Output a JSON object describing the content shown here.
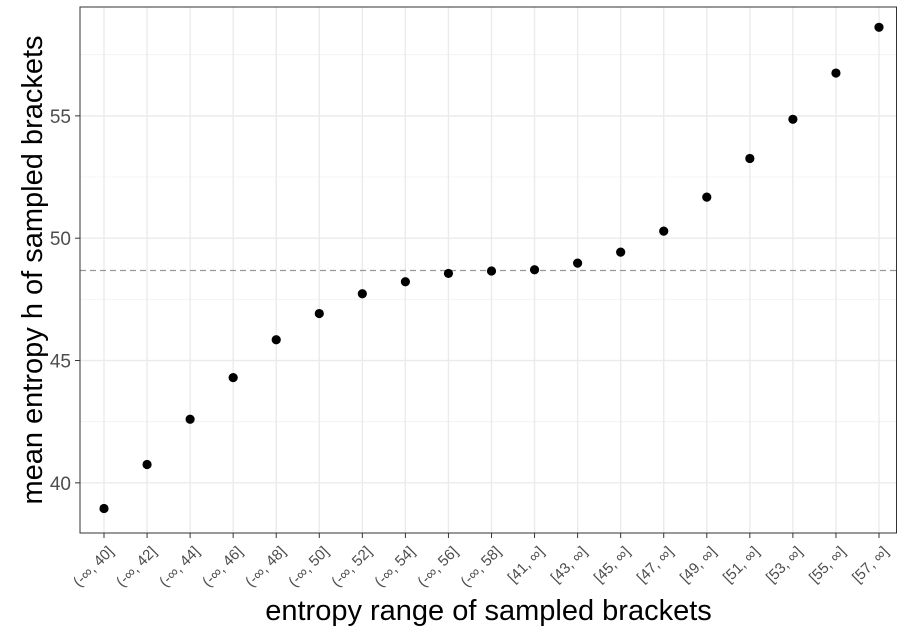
{
  "chart_data": {
    "type": "scatter",
    "title": "",
    "xlabel": "entropy range of sampled brackets",
    "ylabel": "mean entropy h of sampled brackets",
    "categories": [
      "(-∞, 40]",
      "(-∞, 42]",
      "(-∞, 44]",
      "(-∞, 46]",
      "(-∞, 48]",
      "(-∞, 50]",
      "(-∞, 52]",
      "(-∞, 54]",
      "(-∞, 56]",
      "(-∞, 58]",
      "[41, ∞]",
      "[43, ∞]",
      "[45, ∞]",
      "[47, ∞]",
      "[49, ∞]",
      "[51, ∞]",
      "[53, ∞]",
      "[55, ∞]",
      "[57, ∞]"
    ],
    "values": [
      38.95,
      40.75,
      42.6,
      44.3,
      45.85,
      46.92,
      47.73,
      48.22,
      48.56,
      48.66,
      48.71,
      48.98,
      49.43,
      50.29,
      51.68,
      53.26,
      54.86,
      56.75,
      58.62
    ],
    "reference_line": {
      "y": 48.68,
      "style": "dashed",
      "color": "#999999"
    },
    "yticks": [
      40,
      45,
      50,
      55
    ],
    "ylim": [
      37.95,
      59.45
    ],
    "grid": true,
    "point_color": "#000000"
  }
}
